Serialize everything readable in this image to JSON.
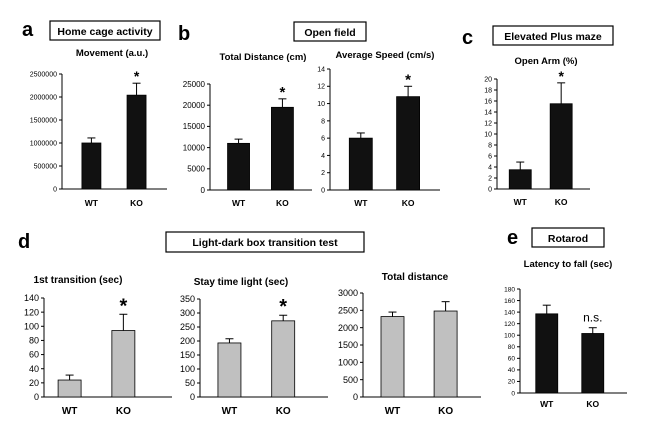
{
  "panels": {
    "a": {
      "letter": "a",
      "header": "Home cage activity"
    },
    "b": {
      "letter": "b",
      "header": "Open field"
    },
    "c": {
      "letter": "c",
      "header": "Elevated Plus maze"
    },
    "d": {
      "letter": "d",
      "header": "Light-dark box transition test"
    },
    "e": {
      "letter": "e",
      "header": "Rotarod"
    }
  },
  "chart_data": [
    {
      "id": "a1",
      "panel": "a",
      "type": "bar",
      "title": "Movement (a.u.)",
      "categories": [
        "WT",
        "KO"
      ],
      "values": [
        1000000,
        2040000
      ],
      "errors": [
        110000,
        260000
      ],
      "ylim": [
        0,
        2500000
      ],
      "yticks": [
        "0",
        "500000",
        "1000000",
        "1500000",
        "2000000",
        "2500000"
      ],
      "annotations": [
        {
          "category": "KO",
          "text": "*"
        }
      ],
      "bar_color": "#111111"
    },
    {
      "id": "b1",
      "panel": "b",
      "type": "bar",
      "title": "Total Distance (cm)",
      "categories": [
        "WT",
        "KO"
      ],
      "values": [
        11000,
        19500
      ],
      "errors": [
        1000,
        2000
      ],
      "ylim": [
        0,
        25000
      ],
      "yticks": [
        "0",
        "5000",
        "10000",
        "15000",
        "20000",
        "25000"
      ],
      "annotations": [
        {
          "category": "KO",
          "text": "*"
        }
      ],
      "bar_color": "#111111"
    },
    {
      "id": "b2",
      "panel": "b",
      "type": "bar",
      "title": "Average Speed (cm/s)",
      "categories": [
        "WT",
        "KO"
      ],
      "values": [
        6,
        10.8
      ],
      "errors": [
        0.6,
        1.2
      ],
      "ylim": [
        0,
        14
      ],
      "yticks": [
        "0",
        "2",
        "4",
        "6",
        "8",
        "10",
        "12",
        "14"
      ],
      "annotations": [
        {
          "category": "KO",
          "text": "*"
        }
      ],
      "bar_color": "#111111"
    },
    {
      "id": "c1",
      "panel": "c",
      "type": "bar",
      "title": "Open Arm (%)",
      "categories": [
        "WT",
        "KO"
      ],
      "values": [
        3.5,
        15.5
      ],
      "errors": [
        1.4,
        3.8
      ],
      "ylim": [
        0,
        20
      ],
      "yticks": [
        "0",
        "2",
        "4",
        "6",
        "8",
        "10",
        "12",
        "14",
        "16",
        "18",
        "20"
      ],
      "annotations": [
        {
          "category": "KO",
          "text": "*"
        }
      ],
      "bar_color": "#111111"
    },
    {
      "id": "d1",
      "panel": "d",
      "type": "bar",
      "title": "1st transition (sec)",
      "categories": [
        "WT",
        "KO"
      ],
      "values": [
        24,
        94
      ],
      "errors": [
        7,
        23
      ],
      "ylim": [
        0,
        140
      ],
      "yticks": [
        "0",
        "20",
        "40",
        "60",
        "80",
        "100",
        "120",
        "140"
      ],
      "annotations": [
        {
          "category": "KO",
          "text": "*"
        }
      ],
      "bar_color": "#c0c0c0"
    },
    {
      "id": "d2",
      "panel": "d",
      "type": "bar",
      "title": "Stay time light (sec)",
      "categories": [
        "WT",
        "KO"
      ],
      "values": [
        193,
        272
      ],
      "errors": [
        15,
        20
      ],
      "ylim": [
        0,
        350
      ],
      "yticks": [
        "0",
        "50",
        "100",
        "150",
        "200",
        "250",
        "300",
        "350"
      ],
      "annotations": [
        {
          "category": "KO",
          "text": "*"
        }
      ],
      "bar_color": "#c0c0c0"
    },
    {
      "id": "d3",
      "panel": "d",
      "type": "bar",
      "title": "Total distance",
      "categories": [
        "WT",
        "KO"
      ],
      "values": [
        2320,
        2480
      ],
      "errors": [
        130,
        270
      ],
      "ylim": [
        0,
        3000
      ],
      "yticks": [
        "0",
        "500",
        "1000",
        "1500",
        "2000",
        "2500",
        "3000"
      ],
      "annotations": [],
      "bar_color": "#c0c0c0"
    },
    {
      "id": "e1",
      "panel": "e",
      "type": "bar",
      "title": "Latency to fall (sec)",
      "categories": [
        "WT",
        "KO"
      ],
      "values": [
        137,
        103
      ],
      "errors": [
        15,
        10
      ],
      "ylim": [
        0,
        180
      ],
      "yticks": [
        "0",
        "20",
        "40",
        "60",
        "80",
        "100",
        "120",
        "140",
        "160",
        "180"
      ],
      "annotations": [
        {
          "category": "KO",
          "text": "n.s."
        }
      ],
      "bar_color": "#111111"
    }
  ]
}
